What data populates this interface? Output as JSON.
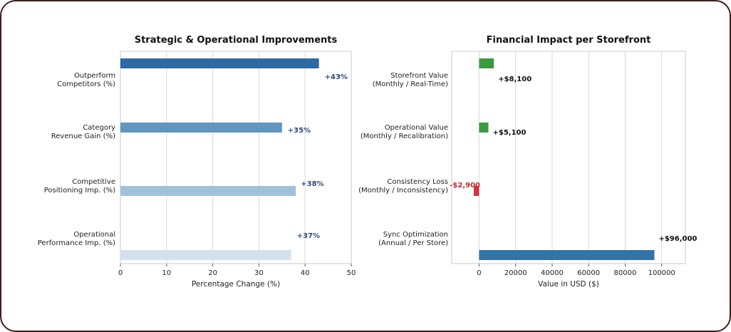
{
  "chart_data": [
    {
      "type": "bar",
      "orientation": "horizontal",
      "title": "Strategic & Operational Improvements",
      "xlabel": "Percentage Change (%)",
      "ylabel": "",
      "xlim": [
        0,
        50
      ],
      "xticks": [
        "0",
        "10",
        "20",
        "30",
        "40",
        "50"
      ],
      "grid": "vertical",
      "categories": [
        [
          "Outperform",
          "Competitors (%)"
        ],
        [
          "Category",
          "Revenue Gain (%)"
        ],
        [
          "Competitive",
          "Positioning Imp. (%)"
        ],
        [
          "Operational",
          "Performance Imp. (%)"
        ]
      ],
      "values": [
        43,
        35,
        38,
        37
      ],
      "data_labels": [
        "+43%",
        "+35%",
        "+38%",
        "+37%"
      ],
      "colors": [
        "#2c6aa3",
        "#6096bf",
        "#9fc2d9",
        "#d3e1ee"
      ],
      "label_color": "#2b4c7e"
    },
    {
      "type": "bar",
      "orientation": "horizontal",
      "title": "Financial Impact per Storefront",
      "xlabel": "Value in USD ($)",
      "ylabel": "",
      "xlim": [
        -15000,
        113000
      ],
      "xticks": [
        0,
        20000,
        40000,
        60000,
        80000,
        100000
      ],
      "grid": "vertical",
      "categories": [
        [
          "Storefront Value",
          "(Monthly / Real-Time)"
        ],
        [
          "Operational Value",
          "(Monthly / Recalibration)"
        ],
        [
          "Consistency Loss",
          "(Monthly / Inconsistency)"
        ],
        [
          "Sync Optimization",
          "(Annual / Per Store)"
        ]
      ],
      "values": [
        8100,
        5100,
        -2900,
        96000
      ],
      "data_labels": [
        "+$8,100",
        "+$5,100",
        "-$2,900",
        "+$96,000"
      ],
      "colors": [
        "#3a9a3f",
        "#3a9a3f",
        "#d2343d",
        "#3274a6"
      ],
      "label_colors": [
        "#111111",
        "#111111",
        "#c0272d",
        "#111111"
      ]
    }
  ]
}
